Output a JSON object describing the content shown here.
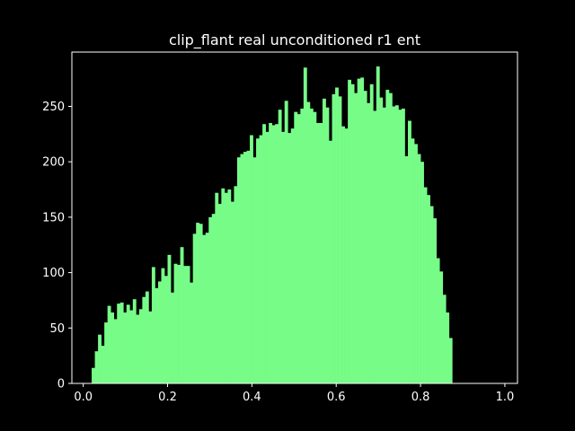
{
  "chart_data": {
    "type": "bar",
    "title": "clip_flant real unconditioned r1 ent",
    "xlabel": "",
    "ylabel": "",
    "xlim": [
      -0.027,
      1.03
    ],
    "ylim": [
      0,
      299
    ],
    "bin_start": 0.02,
    "bin_width": 0.0075,
    "x_ticks": [
      "0.0",
      "0.2",
      "0.4",
      "0.6",
      "0.8",
      "1.0"
    ],
    "y_ticks": [
      "0",
      "50",
      "100",
      "150",
      "200",
      "250"
    ],
    "grid": false,
    "legend": "none",
    "colors": {
      "background": "#000000",
      "bar": "#77fc88",
      "text": "#ffffff",
      "axis": "#ffffff"
    },
    "values": [
      14,
      29,
      44,
      34,
      55,
      70,
      64,
      58,
      72,
      73,
      64,
      71,
      66,
      76,
      62,
      67,
      78,
      83,
      65,
      105,
      86,
      92,
      104,
      97,
      116,
      82,
      108,
      107,
      123,
      106,
      106,
      91,
      135,
      145,
      144,
      134,
      136,
      150,
      153,
      172,
      162,
      176,
      172,
      175,
      164,
      178,
      204,
      207,
      209,
      210,
      224,
      204,
      221,
      224,
      234,
      227,
      235,
      233,
      234,
      247,
      227,
      255,
      226,
      230,
      245,
      243,
      248,
      285,
      254,
      248,
      245,
      235,
      235,
      257,
      249,
      219,
      261,
      267,
      259,
      232,
      230,
      274,
      270,
      262,
      275,
      276,
      264,
      253,
      270,
      246,
      286,
      258,
      249,
      265,
      262,
      250,
      251,
      247,
      248,
      205,
      237,
      221,
      216,
      207,
      200,
      177,
      170,
      160,
      149,
      113,
      101,
      80,
      64,
      41
    ]
  }
}
